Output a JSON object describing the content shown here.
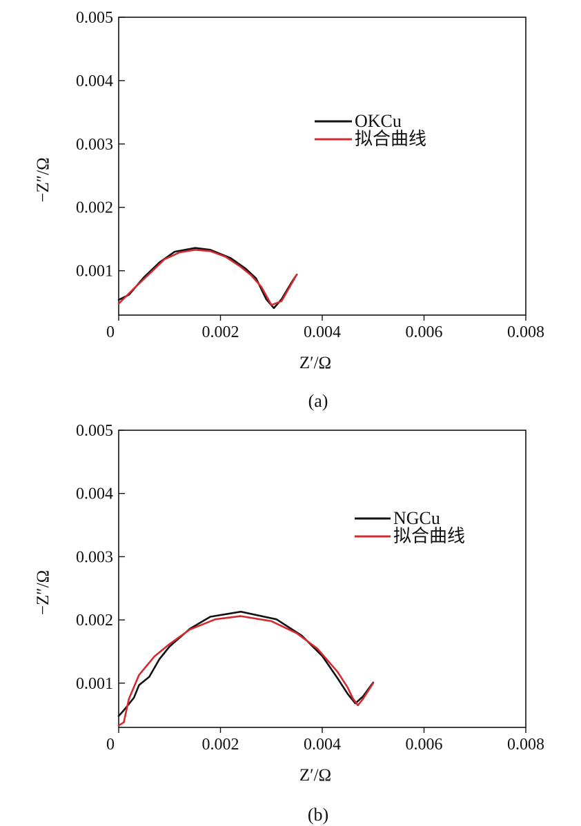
{
  "chart_data": [
    {
      "type": "line",
      "panel_caption": "(a)",
      "xlabel": "Z′/Ω",
      "ylabel": "−Z″/Ω",
      "xlim": [
        0,
        0.008
      ],
      "ylim": [
        0.0003,
        0.005
      ],
      "x_ticks": [
        0,
        0.002,
        0.004,
        0.006,
        0.008
      ],
      "x_tick_labels": [
        "0",
        "0.002",
        "0.004",
        "0.006",
        "0.008"
      ],
      "y_ticks": [
        0.001,
        0.002,
        0.003,
        0.004,
        0.005
      ],
      "y_tick_labels": [
        "0.001",
        "0.002",
        "0.003",
        "0.004",
        "0.005"
      ],
      "legend_position": "upper-middle",
      "series": [
        {
          "name": "OKCu",
          "color": "#111111",
          "x": [
            0.0,
            0.0002,
            0.0005,
            0.0008,
            0.0011,
            0.0015,
            0.0018,
            0.0022,
            0.0025,
            0.0027,
            0.0029,
            0.00305,
            0.0032,
            0.0034,
            0.0035
          ],
          "y": [
            0.00054,
            0.00062,
            0.0009,
            0.00113,
            0.0013,
            0.00136,
            0.00133,
            0.0012,
            0.00103,
            0.00088,
            0.00055,
            0.00041,
            0.00055,
            0.00082,
            0.00094
          ]
        },
        {
          "name": "拟合曲线",
          "color": "#d42a2f",
          "x": [
            0.0,
            0.0003,
            0.0006,
            0.0009,
            0.0012,
            0.0015,
            0.0018,
            0.0021,
            0.0024,
            0.0026,
            0.0028,
            0.003,
            0.0032,
            0.0034,
            0.0035
          ],
          "y": [
            0.00048,
            0.00072,
            0.00095,
            0.00118,
            0.00129,
            0.00133,
            0.00131,
            0.00122,
            0.00106,
            0.00093,
            0.00075,
            0.00046,
            0.00052,
            0.0008,
            0.00094
          ]
        }
      ]
    },
    {
      "type": "line",
      "panel_caption": "(b)",
      "xlabel": "Z′/Ω",
      "ylabel": "−Z″/Ω",
      "xlim": [
        0,
        0.008
      ],
      "ylim": [
        0.0003,
        0.005
      ],
      "x_ticks": [
        0,
        0.002,
        0.004,
        0.006,
        0.008
      ],
      "x_tick_labels": [
        "0",
        "0.002",
        "0.004",
        "0.006",
        "0.008"
      ],
      "y_ticks": [
        0.001,
        0.002,
        0.003,
        0.004,
        0.005
      ],
      "y_tick_labels": [
        "0.001",
        "0.002",
        "0.003",
        "0.004",
        "0.005"
      ],
      "legend_position": "upper-right",
      "series": [
        {
          "name": "NGCu",
          "color": "#111111",
          "x": [
            0.0,
            0.0001,
            0.0003,
            0.0004,
            0.0006,
            0.0008,
            0.001,
            0.0014,
            0.0018,
            0.0024,
            0.0031,
            0.0036,
            0.004,
            0.0043,
            0.0045,
            0.0046,
            0.00465,
            0.0048,
            0.005
          ],
          "y": [
            0.00048,
            0.00057,
            0.00077,
            0.00097,
            0.0011,
            0.00138,
            0.00158,
            0.00186,
            0.00205,
            0.00213,
            0.00201,
            0.00175,
            0.00143,
            0.00108,
            0.00083,
            0.00073,
            0.00068,
            0.00079,
            0.00101
          ]
        },
        {
          "name": "拟合曲线",
          "color": "#d42a2f",
          "x": [
            0.0,
            0.0001,
            0.0002,
            0.0004,
            0.0007,
            0.001,
            0.0014,
            0.0019,
            0.0024,
            0.003,
            0.0035,
            0.0039,
            0.0043,
            0.0045,
            0.0046,
            0.0047,
            0.0048,
            0.005
          ],
          "y": [
            0.00033,
            0.00038,
            0.00075,
            0.00113,
            0.00142,
            0.00162,
            0.00185,
            0.00201,
            0.00206,
            0.00198,
            0.00179,
            0.00155,
            0.00118,
            0.00093,
            0.00076,
            0.00065,
            0.00075,
            0.001
          ]
        }
      ]
    }
  ]
}
